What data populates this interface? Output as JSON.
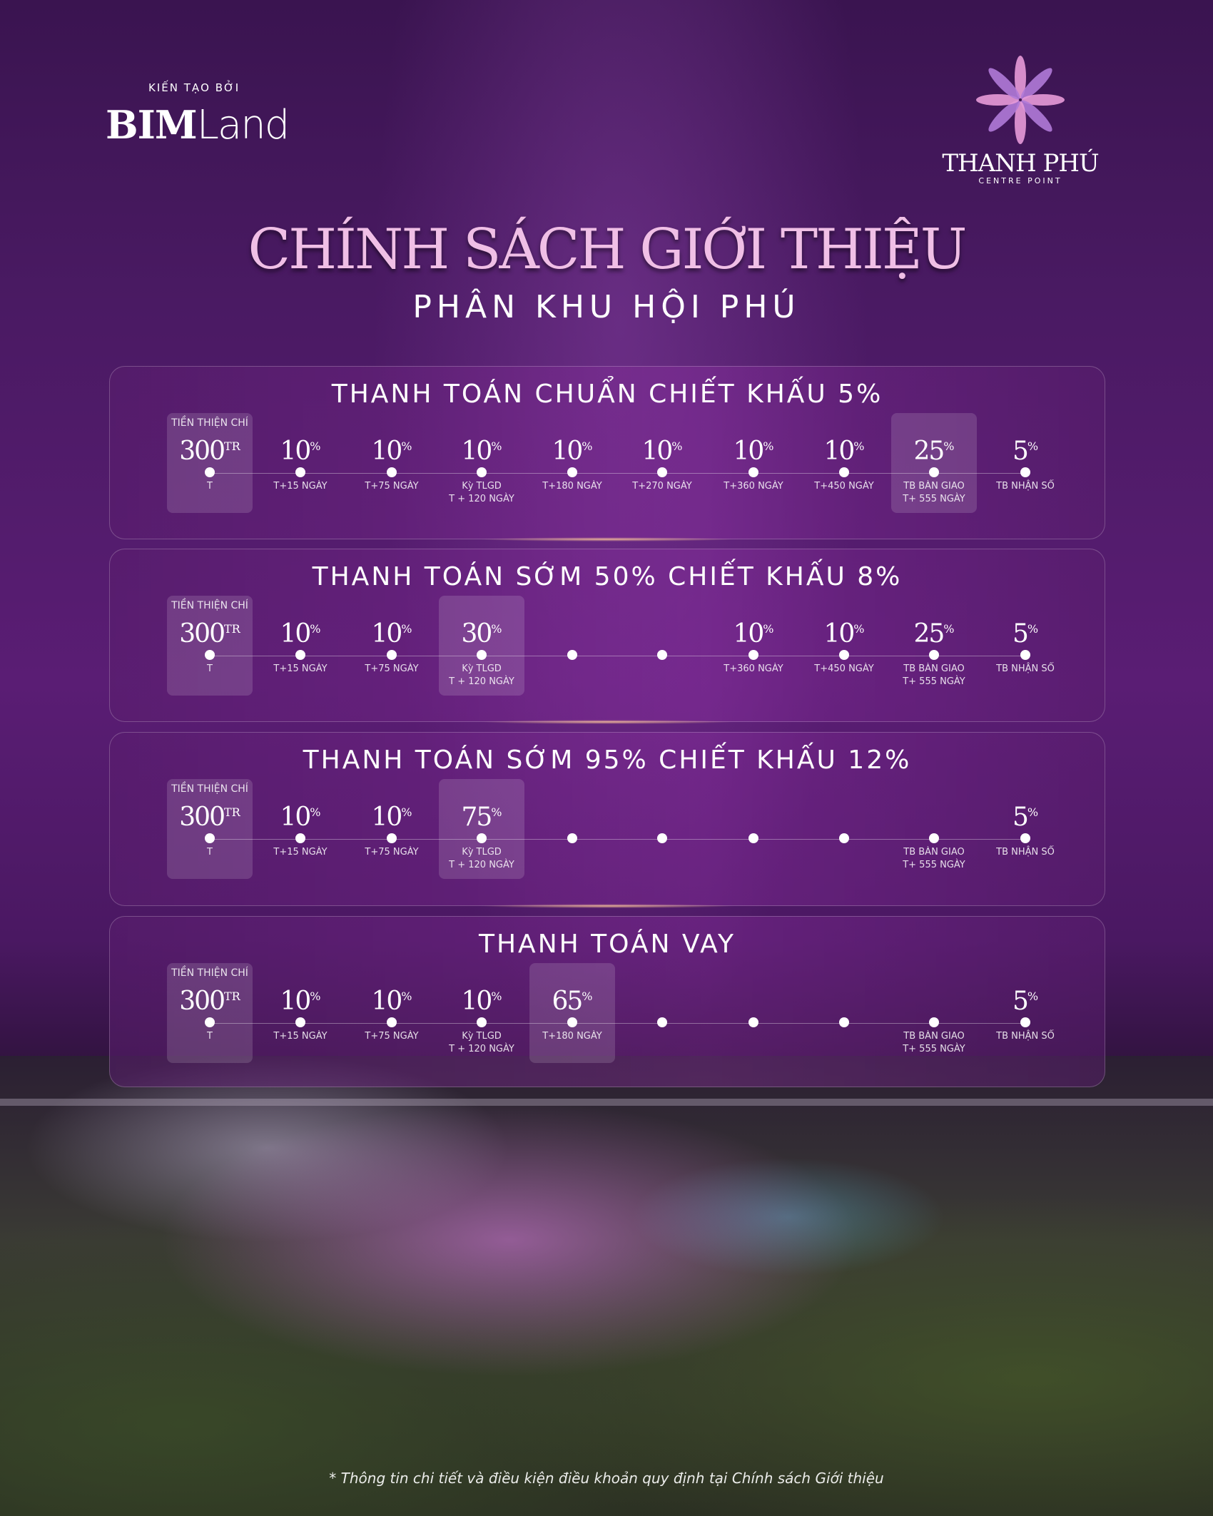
{
  "header": {
    "built_by": "KIẾN TẠO BỞI",
    "developer_logo": "BIM Land",
    "developer_bold": "BIM",
    "developer_light": "Land",
    "project_name": "THANH PHÚ",
    "project_sub": "CENTRE POINT"
  },
  "title": "CHÍNH SÁCH GIỚI THIỆU",
  "subtitle": "PHÂN KHU HỘI PHÚ",
  "colors": {
    "background": "#4a1a63",
    "title": "#f0bfe6"
  },
  "plans": [
    {
      "title": "THANH TOÁN CHUẨN CHIẾT KHẤU 5%",
      "steps": [
        {
          "top": "TIỀN THIỆN CHÍ",
          "value": "300",
          "sup": "TR",
          "label": "T",
          "label2": "",
          "highlight": true
        },
        {
          "value": "10",
          "sup": "%",
          "label": "T+15 NGÀY"
        },
        {
          "value": "10",
          "sup": "%",
          "label": "T+75 NGÀY"
        },
        {
          "value": "10",
          "sup": "%",
          "label": "Kỳ TLGD",
          "label2": "T + 120 NGÀY"
        },
        {
          "value": "10",
          "sup": "%",
          "label": "T+180 NGÀY"
        },
        {
          "value": "10",
          "sup": "%",
          "label": "T+270 NGÀY"
        },
        {
          "value": "10",
          "sup": "%",
          "label": "T+360 NGÀY"
        },
        {
          "value": "10",
          "sup": "%",
          "label": "T+450 NGÀY"
        },
        {
          "value": "25",
          "sup": "%",
          "label": "TB BÀN GIAO",
          "label2": "T+ 555 NGÀY",
          "highlight": true
        },
        {
          "value": "5",
          "sup": "%",
          "label": "TB NHẬN SỔ"
        }
      ]
    },
    {
      "title": "THANH TOÁN SỚM 50% CHIẾT KHẤU 8%",
      "steps": [
        {
          "top": "TIỀN THIỆN CHÍ",
          "value": "300",
          "sup": "TR",
          "label": "T",
          "highlight": true
        },
        {
          "value": "10",
          "sup": "%",
          "label": "T+15 NGÀY"
        },
        {
          "value": "10",
          "sup": "%",
          "label": "T+75 NGÀY"
        },
        {
          "value": "30",
          "sup": "%",
          "label": "Kỳ TLGD",
          "label2": "T + 120 NGÀY",
          "highlight": true
        },
        {},
        {},
        {
          "value": "10",
          "sup": "%",
          "label": "T+360 NGÀY"
        },
        {
          "value": "10",
          "sup": "%",
          "label": "T+450 NGÀY"
        },
        {
          "value": "25",
          "sup": "%",
          "label": "TB BÀN GIAO",
          "label2": "T+ 555 NGÀY"
        },
        {
          "value": "5",
          "sup": "%",
          "label": "TB NHẬN SỔ"
        }
      ]
    },
    {
      "title": "THANH TOÁN SỚM 95% CHIẾT KHẤU 12%",
      "steps": [
        {
          "top": "TIỀN THIỆN CHÍ",
          "value": "300",
          "sup": "TR",
          "label": "T",
          "highlight": true
        },
        {
          "value": "10",
          "sup": "%",
          "label": "T+15 NGÀY"
        },
        {
          "value": "10",
          "sup": "%",
          "label": "T+75 NGÀY"
        },
        {
          "value": "75",
          "sup": "%",
          "label": "Kỳ TLGD",
          "label2": "T + 120 NGÀY",
          "highlight": true
        },
        {},
        {},
        {},
        {},
        {
          "label": "TB BÀN GIAO",
          "label2": "T+ 555 NGÀY"
        },
        {
          "value": "5",
          "sup": "%",
          "label": "TB NHẬN SỔ"
        }
      ]
    },
    {
      "title": "THANH TOÁN VAY",
      "steps": [
        {
          "top": "TIỀN THIỆN CHÍ",
          "value": "300",
          "sup": "TR",
          "label": "T",
          "highlight": true
        },
        {
          "value": "10",
          "sup": "%",
          "label": "T+15 NGÀY"
        },
        {
          "value": "10",
          "sup": "%",
          "label": "T+75 NGÀY"
        },
        {
          "value": "10",
          "sup": "%",
          "label": "Kỳ TLGD",
          "label2": "T + 120 NGÀY"
        },
        {
          "value": "65",
          "sup": "%",
          "label": "T+180 NGÀY",
          "highlight": true
        },
        {},
        {},
        {},
        {
          "label": "TB BÀN GIAO",
          "label2": "T+ 555 NGÀY"
        },
        {
          "value": "5",
          "sup": "%",
          "label": "TB NHẬN SỔ"
        }
      ]
    }
  ],
  "footnote": "* Thông tin chi tiết và điều kiện điều khoản quy định tại Chính sách Giới thiệu"
}
